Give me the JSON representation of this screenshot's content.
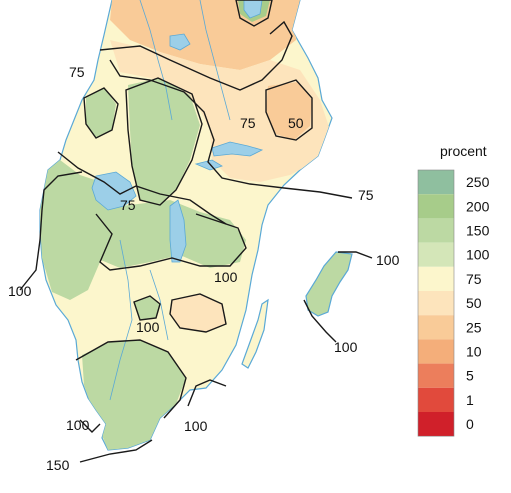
{
  "legend": {
    "title": "procent",
    "classes": [
      {
        "label": "250",
        "color": "#8fbf9f"
      },
      {
        "label": "200",
        "color": "#a7cc8a"
      },
      {
        "label": "150",
        "color": "#bcd9a3"
      },
      {
        "label": "100",
        "color": "#d4e6b8"
      },
      {
        "label": "75",
        "color": "#fcf6cc"
      },
      {
        "label": "50",
        "color": "#fde4bc"
      },
      {
        "label": "25",
        "color": "#f9cb98"
      },
      {
        "label": "10",
        "color": "#f4ae7a"
      },
      {
        "label": "5",
        "color": "#ec7e5c"
      },
      {
        "label": "1",
        "color": "#e14a3c"
      },
      {
        "label": "0",
        "color": "#d0202a"
      }
    ]
  },
  "contour_labels": [
    {
      "text": "75"
    },
    {
      "text": "75"
    },
    {
      "text": "50"
    },
    {
      "text": "75"
    },
    {
      "text": "75"
    },
    {
      "text": "100"
    },
    {
      "text": "100"
    },
    {
      "text": "100"
    },
    {
      "text": "100"
    },
    {
      "text": "100"
    },
    {
      "text": "100"
    },
    {
      "text": "100"
    },
    {
      "text": "150"
    }
  ],
  "colors": {
    "water": "#9ccfe8",
    "coast": "#5aa9d6",
    "contour": "#1a1a1a",
    "land_base": "#fcf6cc",
    "wet": "#bcd9a3",
    "wetter": "#a7cc8a",
    "dry": "#fde4bc",
    "drier": "#f9cb98"
  }
}
